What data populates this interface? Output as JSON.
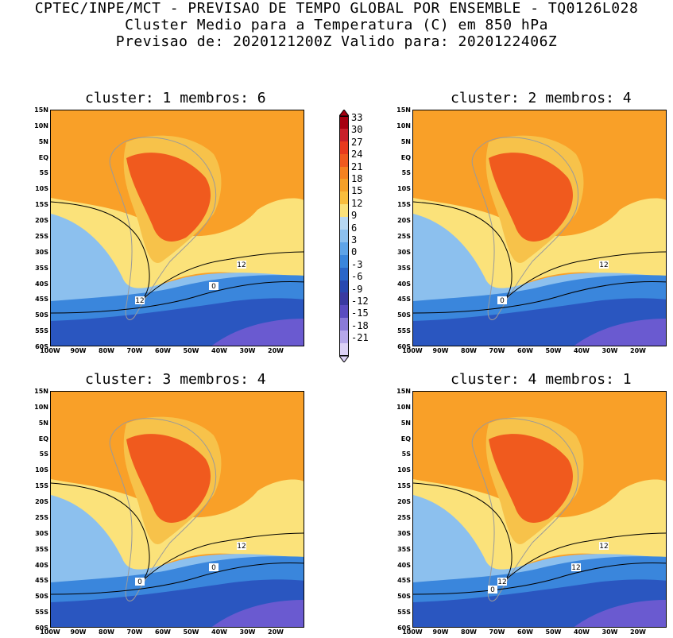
{
  "header": {
    "line1": "CPTEC/INPE/MCT - PREVISAO DE TEMPO GLOBAL POR ENSEMBLE - TQ0126L028",
    "line2": "Cluster Medio para a Temperatura (C) em 850 hPa",
    "line3": "Previsao de: 2020121200Z   Valido para: 2020122406Z"
  },
  "panels": [
    {
      "title": "cluster: 1  membros: 6",
      "contour_labels": [
        "12",
        "12",
        "0"
      ]
    },
    {
      "title": "cluster: 2  membros: 4",
      "contour_labels": [
        "12",
        "0"
      ]
    },
    {
      "title": "cluster: 3  membros: 4",
      "contour_labels": [
        "12",
        "0",
        "0"
      ]
    },
    {
      "title": "cluster: 4  membros: 1",
      "contour_labels": [
        "12",
        "12",
        "12",
        "0"
      ]
    }
  ],
  "lat_ticks": [
    "15N",
    "10N",
    "5N",
    "EQ",
    "5S",
    "10S",
    "15S",
    "20S",
    "25S",
    "30S",
    "35S",
    "40S",
    "45S",
    "50S",
    "55S",
    "60S"
  ],
  "lon_ticks": [
    "100W",
    "90W",
    "80W",
    "70W",
    "60W",
    "50W",
    "40W",
    "30W",
    "20W"
  ],
  "colorbar": {
    "labels": [
      "33",
      "30",
      "27",
      "24",
      "21",
      "18",
      "15",
      "12",
      "9",
      "6",
      "3",
      "0",
      "-3",
      "-6",
      "-9",
      "-12",
      "-15",
      "-18",
      "-21"
    ],
    "colors": [
      "#a50010",
      "#c8202a",
      "#e83a1e",
      "#f05a1e",
      "#f58220",
      "#f5a028",
      "#f9be3c",
      "#fbe27a",
      "#b7d8f2",
      "#8cc0ee",
      "#5ea4e8",
      "#3a86dc",
      "#2a66c8",
      "#2848b0",
      "#3a3aa0",
      "#5a4cc0",
      "#8a7ad8",
      "#b6a8ea",
      "#dcd2f6"
    ]
  },
  "colors": {
    "warm_core": "#f05a1e",
    "warm": "#f9a028",
    "mild": "#f7c24a",
    "pale_yellow": "#fbe27a",
    "cool": "#8cc0ee",
    "cold": "#3a86dc",
    "very_cold": "#2a56c0",
    "polar": "#6a5ad0"
  }
}
